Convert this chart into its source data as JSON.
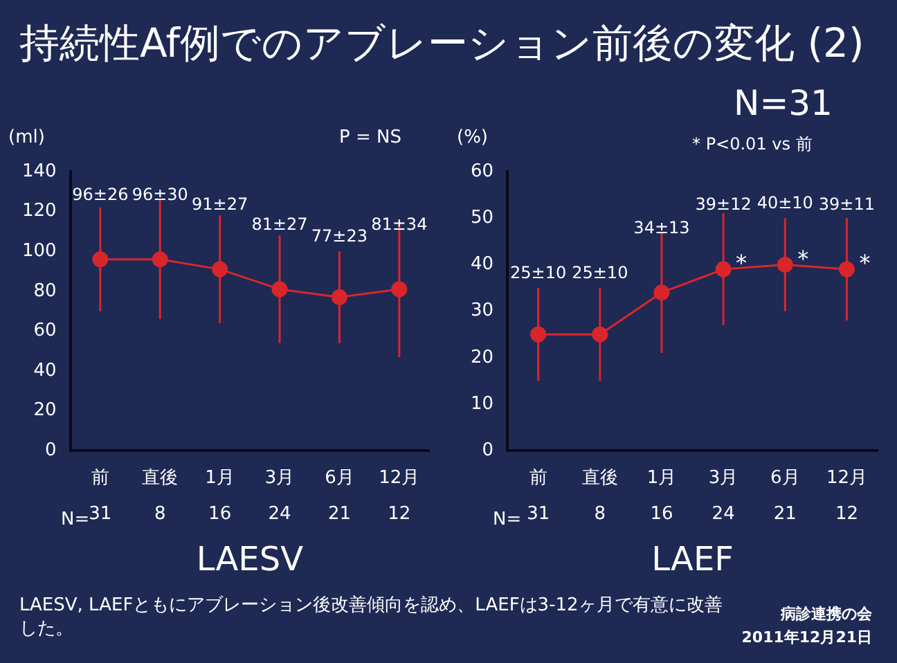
{
  "chart_data": [
    {
      "type": "line",
      "title": "持続性Af例でのアブレーション前後の変化 (2)",
      "ylabel": "(ml)",
      "xlabel": "LAESV",
      "categories": [
        "前",
        "直後",
        "1月",
        "3月",
        "6月",
        "12月"
      ],
      "values": [
        96,
        96,
        91,
        81,
        77,
        81
      ],
      "errors": [
        26,
        30,
        27,
        27,
        23,
        34
      ],
      "value_labels": [
        "96±26",
        "96±30",
        "91±27",
        "81±27",
        "77±23",
        "81±34"
      ],
      "color": "#d9262b",
      "marker": "circle",
      "ylim": [
        0,
        140
      ],
      "yticks": [
        0,
        20,
        40,
        60,
        80,
        100,
        120,
        140
      ],
      "annotations": [
        "P = NS",
        "N=",
        "LAESV, LAEFともにアブレーション後改善傾向を認め、LAEFは3-12ヶ月で有意に改善した。",
        "31",
        "8",
        "16",
        "24",
        "21",
        "12"
      ]
    },
    {
      "type": "line",
      "ylabel": "(%)",
      "xlabel": "LAEF",
      "categories": [
        "前",
        "直後",
        "1月",
        "3月",
        "6月",
        "12月"
      ],
      "values": [
        25,
        25,
        34,
        39,
        40,
        39
      ],
      "errors": [
        10,
        10,
        13,
        12,
        10,
        11
      ],
      "value_labels": [
        "25±10",
        "25±10",
        "34±13",
        "39±12",
        "40±10",
        "39±11"
      ],
      "color": "#d9262b",
      "marker": "circle",
      "ylim": [
        0,
        60
      ],
      "yticks": [
        0,
        10,
        20,
        30,
        40,
        50,
        60
      ],
      "annotations": [
        "N=31",
        "* P<0.01 vs 前",
        "N=",
        "病診連携の会",
        "2011年12月21日",
        "31",
        "8",
        "16",
        "24",
        "21",
        "12",
        {
          "text": "*",
          "x": "3月",
          "y": 39
        },
        {
          "text": "*",
          "x": "6月",
          "y": 40
        },
        {
          "text": "*",
          "x": "12月",
          "y": 39
        }
      ]
    }
  ]
}
